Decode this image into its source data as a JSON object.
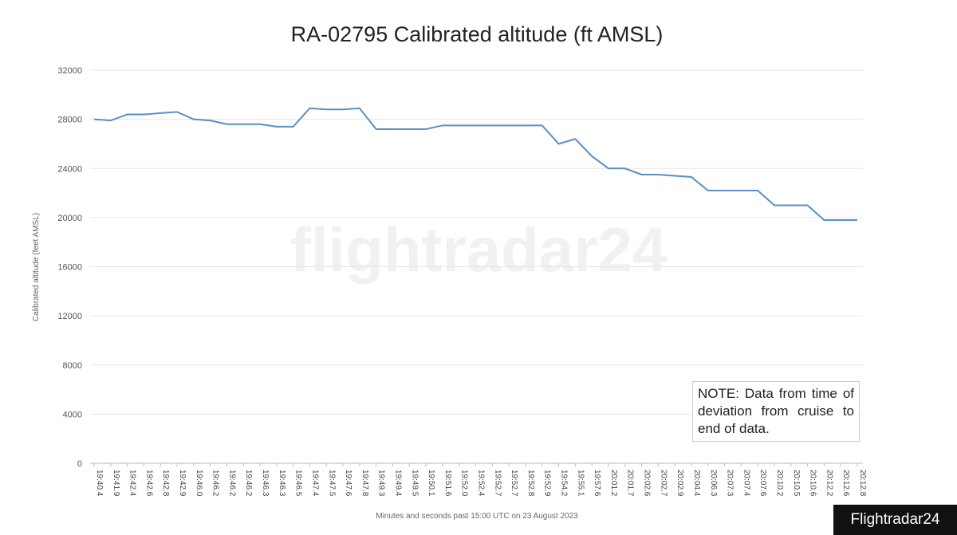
{
  "chart_data": {
    "type": "line",
    "title": "RA-02795 Calibrated altitude (ft AMSL)",
    "y_label": "Calibrated altitude (feet AMSL)",
    "x_label": "Minutes and seconds past 15:00 UTC on 23 August 2023",
    "watermark": "flightradar24",
    "note": "NOTE: Data from time of deviation from cruise to end of data.",
    "source_badge": "Flightradar24",
    "categories": [
      "19:40.4",
      "19:41.9",
      "19:42.4",
      "19:42.6",
      "19:42.8",
      "19:42.9",
      "19:46.0",
      "19:46.2",
      "19:46.2",
      "19:46.2",
      "19:46.3",
      "19:46.3",
      "19:46.5",
      "19:47.4",
      "19:47.5",
      "19:47.6",
      "19:47.8",
      "19:49.3",
      "19:49.4",
      "19:49.5",
      "19:50.1",
      "19:51.6",
      "19:52.0",
      "19:52.4",
      "19:52.7",
      "19:52.7",
      "19:52.8",
      "19:52.9",
      "19:54.2",
      "19:55.1",
      "19:57.6",
      "20:01.2",
      "20:01.7",
      "20:02.6",
      "20:02.7",
      "20:02.9",
      "20:04.4",
      "20:06.3",
      "20:07.3",
      "20:07.4",
      "20:07.6",
      "20:10.2",
      "20:10.5",
      "20:10.6",
      "20:12.2",
      "20:12.6",
      "20:12.8"
    ],
    "series": [
      {
        "name": "Calibrated altitude",
        "color": "#5b8ec2",
        "values": [
          28000,
          27900,
          28400,
          28400,
          28500,
          28600,
          28000,
          27900,
          27600,
          27600,
          27600,
          27400,
          27400,
          28900,
          28800,
          28800,
          28900,
          27200,
          27200,
          27200,
          27200,
          27500,
          27500,
          27500,
          27500,
          27500,
          27500,
          27500,
          26000,
          26400,
          25000,
          24000,
          24000,
          23500,
          23500,
          23400,
          23300,
          22200,
          22200,
          22200,
          22200,
          21000,
          21000,
          21000,
          19800,
          19800,
          19800
        ]
      }
    ],
    "ylim": [
      0,
      32000
    ],
    "yticks": [
      0,
      4000,
      8000,
      12000,
      16000,
      20000,
      24000,
      28000,
      32000
    ],
    "grid": true
  }
}
